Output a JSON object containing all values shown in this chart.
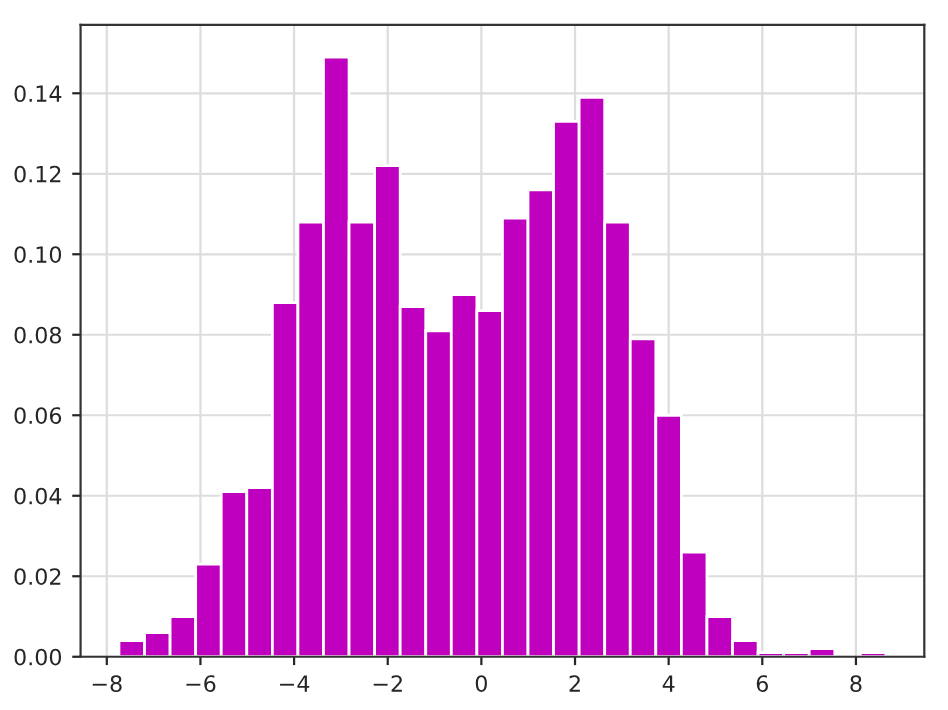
{
  "chart_data": {
    "type": "histogram",
    "bins": [
      -7.74,
      -7.194,
      -6.648,
      -6.102,
      -5.556,
      -5.01,
      -4.464,
      -3.918,
      -3.372,
      -2.826,
      -2.28,
      -1.734,
      -1.188,
      -0.642,
      -0.096,
      0.45,
      0.996,
      1.542,
      2.088,
      2.634,
      3.18,
      3.726,
      4.272,
      4.818,
      5.364,
      5.91,
      6.456,
      7.002,
      7.548,
      8.094,
      8.64
    ],
    "values": [
      0.004,
      0.006,
      0.01,
      0.023,
      0.041,
      0.042,
      0.088,
      0.108,
      0.149,
      0.108,
      0.122,
      0.087,
      0.081,
      0.09,
      0.086,
      0.109,
      0.116,
      0.133,
      0.139,
      0.108,
      0.079,
      0.06,
      0.026,
      0.01,
      0.004,
      0.001,
      0.001,
      0.002,
      0,
      0.001
    ],
    "color": "#bf00bf",
    "xlim": [
      -8.56,
      9.46
    ],
    "ylim": [
      0,
      0.157
    ],
    "xticks": [
      {
        "value": -8,
        "label": "−8"
      },
      {
        "value": -6,
        "label": "−6"
      },
      {
        "value": -4,
        "label": "−4"
      },
      {
        "value": -2,
        "label": "−2"
      },
      0,
      2,
      4,
      6,
      8
    ],
    "yticks": [
      {
        "value": 0,
        "label": "0.00"
      },
      {
        "value": 0.02,
        "label": "0.02"
      },
      {
        "value": 0.04,
        "label": "0.04"
      },
      {
        "value": 0.06,
        "label": "0.06"
      },
      {
        "value": 0.08,
        "label": "0.08"
      },
      {
        "value": 0.1,
        "label": "0.10"
      },
      {
        "value": 0.12,
        "label": "0.12"
      },
      {
        "value": 0.14,
        "label": "0.14"
      }
    ],
    "grid": true
  }
}
